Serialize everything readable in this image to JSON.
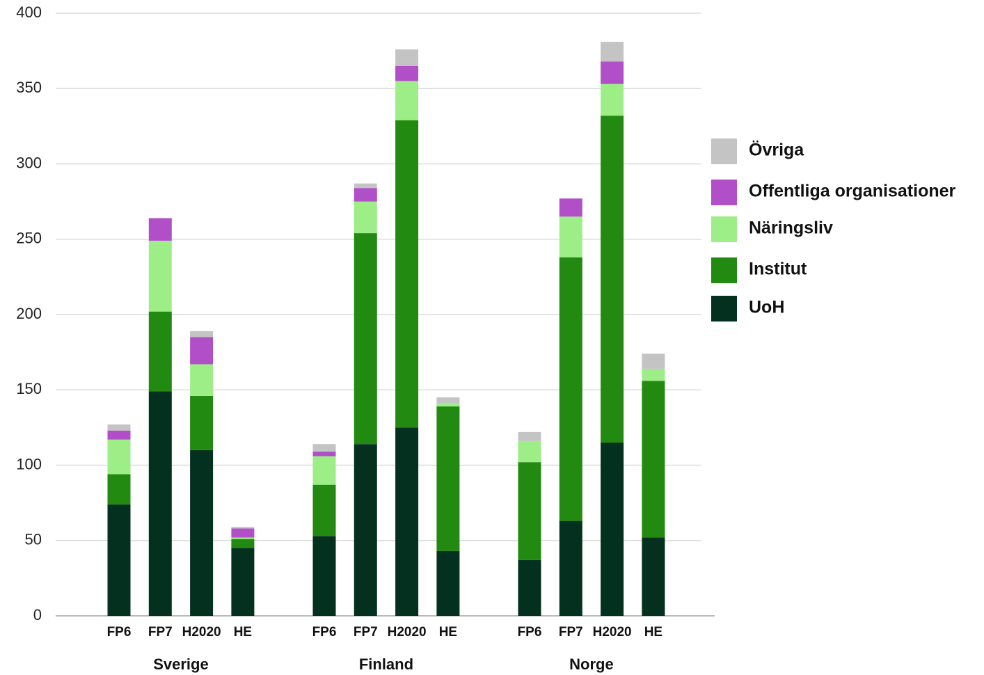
{
  "chart_data": {
    "type": "stacked-bar",
    "categories": [
      "FP6",
      "FP7",
      "H2020",
      "HE",
      "FP6",
      "FP7",
      "H2020",
      "HE",
      "FP6",
      "FP7",
      "H2020",
      "HE"
    ],
    "groups": [
      "Sverige",
      "Finland",
      "Norge"
    ],
    "series": [
      {
        "name": "UoH",
        "color": "#04301f",
        "values": [
          74,
          149,
          110,
          45,
          53,
          114,
          125,
          43,
          37,
          63,
          115,
          52
        ]
      },
      {
        "name": "Institut",
        "color": "#228a10",
        "values": [
          20,
          53,
          36,
          6,
          34,
          140,
          204,
          96,
          65,
          175,
          217,
          104
        ]
      },
      {
        "name": "Näringsliv",
        "color": "#9eee88",
        "values": [
          23,
          47,
          21,
          1,
          19,
          21,
          26,
          2,
          14,
          27,
          21,
          8
        ]
      },
      {
        "name": "Offentliga organisationer",
        "color": "#b04fc8",
        "values": [
          6,
          15,
          18,
          6,
          3,
          9,
          10,
          0,
          0,
          12,
          15,
          0
        ]
      },
      {
        "name": "Övriga",
        "color": "#c4c4c4",
        "values": [
          4,
          0,
          4,
          1,
          5,
          3,
          11,
          4,
          6,
          0,
          13,
          10
        ]
      }
    ],
    "ylim": [
      0,
      400
    ],
    "yticks": [
      0,
      50,
      100,
      150,
      200,
      250,
      300,
      350,
      400
    ],
    "grid": true
  }
}
